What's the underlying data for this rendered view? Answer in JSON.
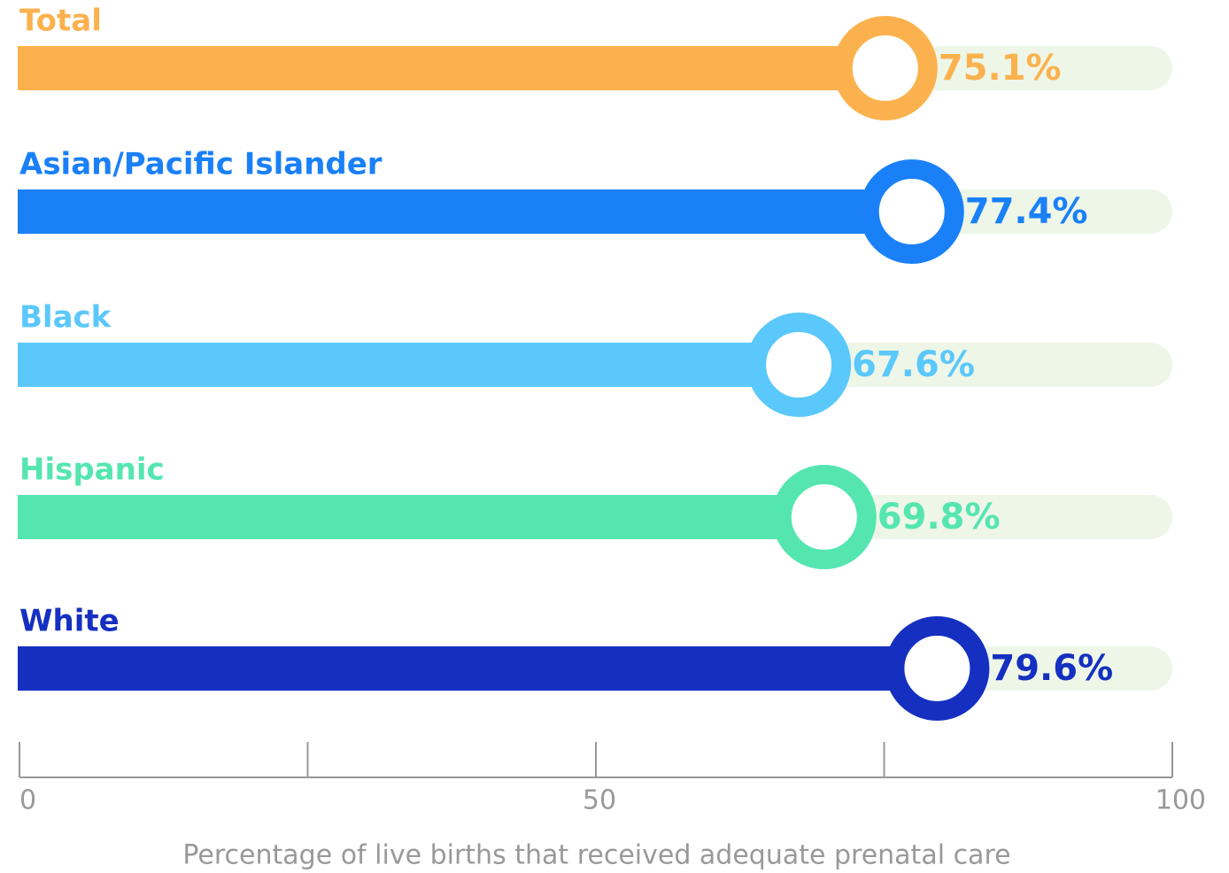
{
  "chart_data": {
    "type": "bar",
    "orientation": "horizontal",
    "categories": [
      "Total",
      "Asian/Pacific Islander",
      "Black",
      "Hispanic",
      "White"
    ],
    "values": [
      75.1,
      77.4,
      67.6,
      69.8,
      79.6
    ],
    "value_labels": [
      "75.1%",
      "77.4%",
      "67.6%",
      "69.8%",
      "79.6%"
    ],
    "colors": [
      "#fbb24e",
      "#1a80f8",
      "#5bc8fb",
      "#55e6b0",
      "#1530c0"
    ],
    "xlim": [
      0,
      100
    ],
    "xticks": [
      0,
      50,
      100
    ],
    "minor_xticks": [
      25,
      75
    ],
    "xlabel": "Percentage of live births that received adequate prenatal care"
  }
}
